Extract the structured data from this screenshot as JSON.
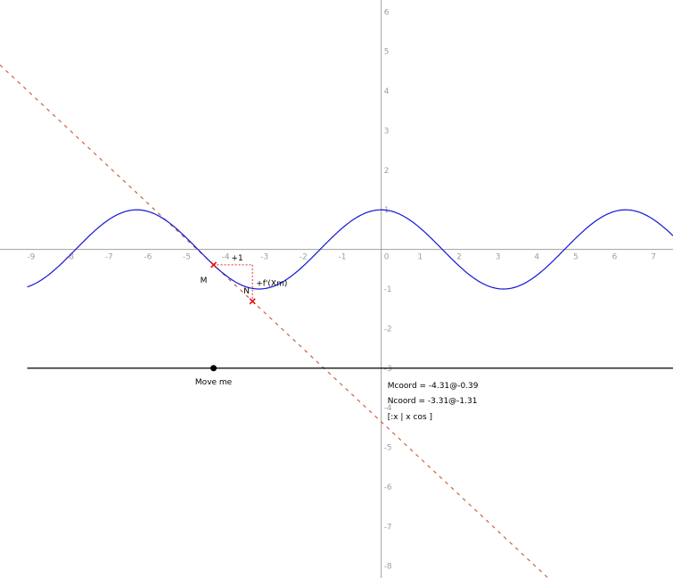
{
  "graph": {
    "x_range": [
      -9.8,
      7.5
    ],
    "y_range": [
      -8.3,
      6.3
    ],
    "x_ticks": [
      -9,
      -8,
      -7,
      -6,
      -5,
      -4,
      -3,
      -2,
      -1,
      0,
      1,
      2,
      3,
      4,
      5,
      6,
      7
    ],
    "y_ticks": [
      -8,
      -7,
      -6,
      -5,
      -4,
      -3,
      -2,
      -1,
      1,
      2,
      3,
      4,
      5,
      6
    ],
    "origin_label": "0",
    "colors": {
      "axis": "#a0a0a0",
      "curve": "#1515d6",
      "tangent": "#c8643c",
      "slope_triangle": "#e03030",
      "point": "#e01010",
      "slider": "#000000"
    }
  },
  "curve": {
    "expression": "cos",
    "x_range": [
      -9.1,
      7.5
    ]
  },
  "slider": {
    "y": -3,
    "x_range": [
      -9.1,
      7.5
    ],
    "point_x": -4.31,
    "point_label": "Move me"
  },
  "points": {
    "M": {
      "name": "M",
      "x": -4.31,
      "y": -0.39
    },
    "N": {
      "name": "N",
      "x": -3.31,
      "y": -1.31
    }
  },
  "slope_triangle": {
    "run_label": "+1",
    "rise_label": "+f'(Xm)"
  },
  "text_box": {
    "lines": [
      "Mcoord = -4.31@-0.39",
      "Ncoord = -3.31@-1.31",
      "[:x | x cos ]"
    ]
  }
}
